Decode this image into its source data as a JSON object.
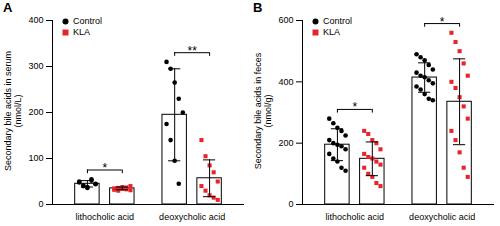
{
  "chart_data": [
    {
      "type": "bar",
      "title": "A",
      "y_label": "Secondary bile acids in serum\n(nmol/L)",
      "categories": [
        "lithocholic acid",
        "deoxycholic acid"
      ],
      "series": [
        {
          "name": "Control",
          "color": "#000000",
          "marker": "circle",
          "values": [
            45,
            195
          ],
          "errors": [
            7,
            100
          ],
          "points": [
            [
              50,
              42,
              38,
              55,
              45,
              48,
              40,
              36,
              52,
              44
            ],
            [
              310,
              295,
              265,
              230,
              200,
              175,
              140,
              95,
              45
            ]
          ]
        },
        {
          "name": "KLA",
          "color": "#e8242a",
          "marker": "square",
          "values": [
            35,
            57
          ],
          "errors": [
            3,
            40
          ],
          "points": [
            [
              35,
              30,
              38,
              33,
              40,
              32,
              36,
              34,
              37,
              31
            ],
            [
              140,
              105,
              85,
              70,
              50,
              40,
              30,
              20,
              15,
              10
            ]
          ]
        }
      ],
      "ylim": [
        0,
        400
      ],
      "yticks": [
        0,
        100,
        200,
        300,
        400
      ],
      "legend": "upper left",
      "annotations": [
        {
          "category": "lithocholic acid",
          "text": "*"
        },
        {
          "category": "deoxycholic acid",
          "text": "**"
        }
      ]
    },
    {
      "type": "bar",
      "title": "B",
      "y_label": "Secondary bile acids in feces\n(nmol/g)",
      "categories": [
        "lithocholic acid",
        "deoxycholic acid"
      ],
      "series": [
        {
          "name": "Control",
          "color": "#000000",
          "marker": "circle",
          "values": [
            195,
            414
          ],
          "errors": [
            52,
            48
          ],
          "points": [
            [
              280,
              265,
              250,
              240,
              225,
              210,
              200,
              195,
              190,
              180,
              165,
              150,
              140,
              120,
              110
            ],
            [
              490,
              480,
              470,
              455,
              440,
              430,
              420,
              415,
              405,
              395,
              385,
              375,
              360,
              345,
              340
            ]
          ]
        },
        {
          "name": "KLA",
          "color": "#e8242a",
          "marker": "square",
          "values": [
            149,
            335
          ],
          "errors": [
            55,
            140
          ],
          "points": [
            [
              240,
              230,
              210,
              200,
              180,
              165,
              155,
              150,
              140,
              130,
              120,
              100,
              90,
              70,
              60
            ],
            [
              560,
              530,
              500,
              460,
              420,
              400,
              380,
              350,
              320,
              280,
              240,
              210,
              170,
              120,
              90
            ]
          ]
        }
      ],
      "ylim": [
        0,
        600
      ],
      "yticks": [
        0,
        200,
        400,
        600
      ],
      "legend": "upper left",
      "annotations": [
        {
          "category": "lithocholic acid",
          "text": "*"
        },
        {
          "category": "deoxycholic acid",
          "text": "*"
        }
      ]
    }
  ]
}
